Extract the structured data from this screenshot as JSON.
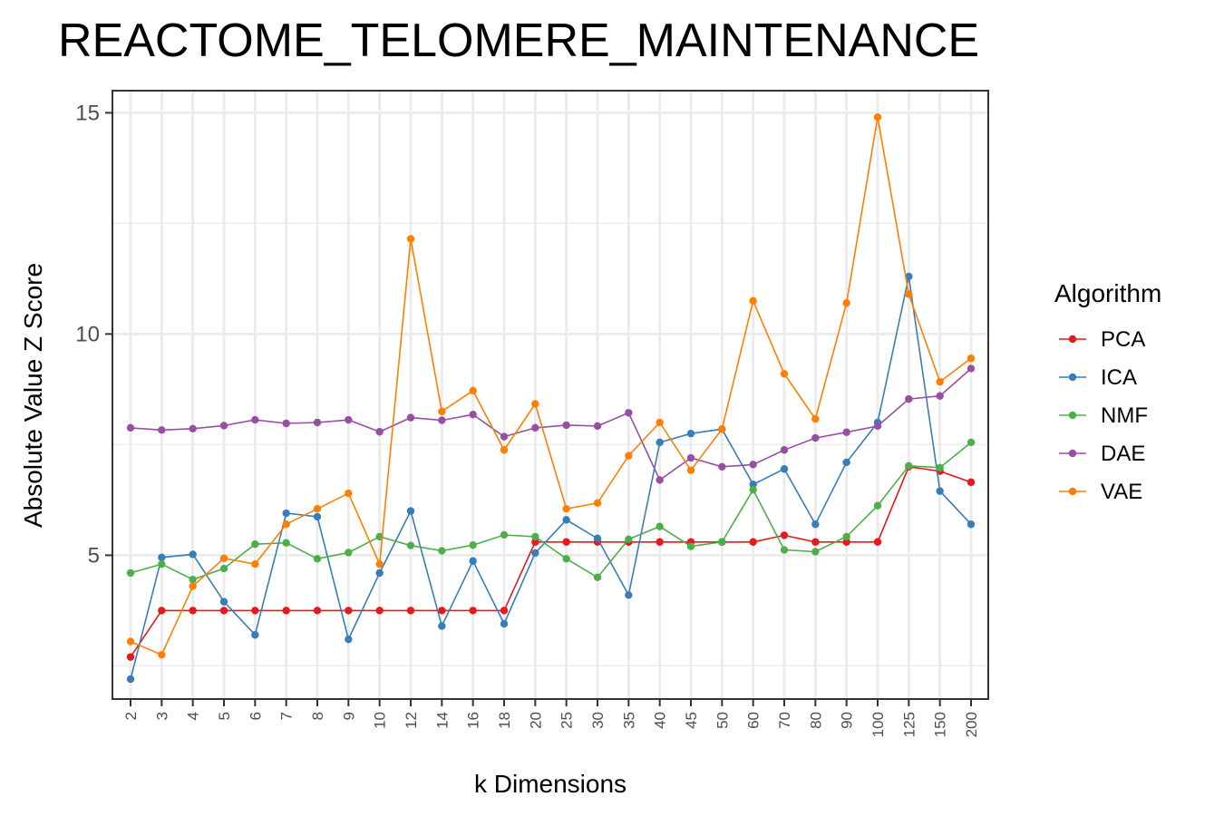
{
  "chart_data": {
    "type": "line",
    "title": "REACTOME_TELOMERE_MAINTENANCE",
    "xlabel": "k Dimensions",
    "ylabel": "Absolute Value Z Score",
    "categories": [
      "2",
      "3",
      "4",
      "5",
      "6",
      "7",
      "8",
      "9",
      "10",
      "12",
      "14",
      "16",
      "18",
      "20",
      "25",
      "30",
      "35",
      "40",
      "45",
      "50",
      "60",
      "70",
      "80",
      "90",
      "100",
      "125",
      "150",
      "200"
    ],
    "ylim": [
      1.75,
      15.5
    ],
    "yticks": [
      5,
      10,
      15
    ],
    "ytick_labels": [
      "5",
      "10",
      "15"
    ],
    "grid": true,
    "legend_title": "Algorithm",
    "legend_position": "right",
    "series": [
      {
        "name": "PCA",
        "color": "#e41a1c",
        "values": [
          2.7,
          3.75,
          3.75,
          3.75,
          3.75,
          3.75,
          3.75,
          3.75,
          3.75,
          3.75,
          3.75,
          3.75,
          3.75,
          5.3,
          5.3,
          5.3,
          5.3,
          5.3,
          5.3,
          5.3,
          5.3,
          5.45,
          5.3,
          5.3,
          5.3,
          7.0,
          6.9,
          6.65
        ]
      },
      {
        "name": "ICA",
        "color": "#377eb8",
        "values": [
          2.2,
          4.95,
          5.02,
          3.95,
          3.2,
          5.95,
          5.87,
          3.1,
          4.6,
          6.0,
          3.4,
          4.87,
          3.45,
          5.05,
          5.8,
          5.38,
          4.1,
          7.55,
          7.75,
          7.85,
          6.6,
          6.95,
          5.7,
          7.1,
          8.0,
          11.3,
          6.45,
          5.7
        ]
      },
      {
        "name": "NMF",
        "color": "#4daf4a",
        "values": [
          4.6,
          4.8,
          4.45,
          4.7,
          5.25,
          5.28,
          4.92,
          5.06,
          5.42,
          5.22,
          5.1,
          5.23,
          5.46,
          5.42,
          4.92,
          4.5,
          5.36,
          5.65,
          5.2,
          5.3,
          6.48,
          5.12,
          5.08,
          5.42,
          6.12,
          7.02,
          6.98,
          7.55
        ]
      },
      {
        "name": "DAE",
        "color": "#984ea3",
        "values": [
          7.88,
          7.83,
          7.86,
          7.93,
          8.06,
          7.98,
          8.0,
          8.06,
          7.79,
          8.11,
          8.05,
          8.18,
          7.68,
          7.88,
          7.94,
          7.92,
          8.22,
          6.7,
          7.2,
          7.0,
          7.05,
          7.38,
          7.65,
          7.78,
          7.92,
          8.53,
          8.6,
          9.22
        ]
      },
      {
        "name": "VAE",
        "color": "#ff7f00",
        "values": [
          3.05,
          2.75,
          4.3,
          4.93,
          4.8,
          5.7,
          6.05,
          6.4,
          4.8,
          12.15,
          8.25,
          8.72,
          7.38,
          8.42,
          6.05,
          6.18,
          7.25,
          8.0,
          6.92,
          7.85,
          10.75,
          9.1,
          8.08,
          10.7,
          14.9,
          10.9,
          8.92,
          9.45
        ]
      }
    ]
  }
}
